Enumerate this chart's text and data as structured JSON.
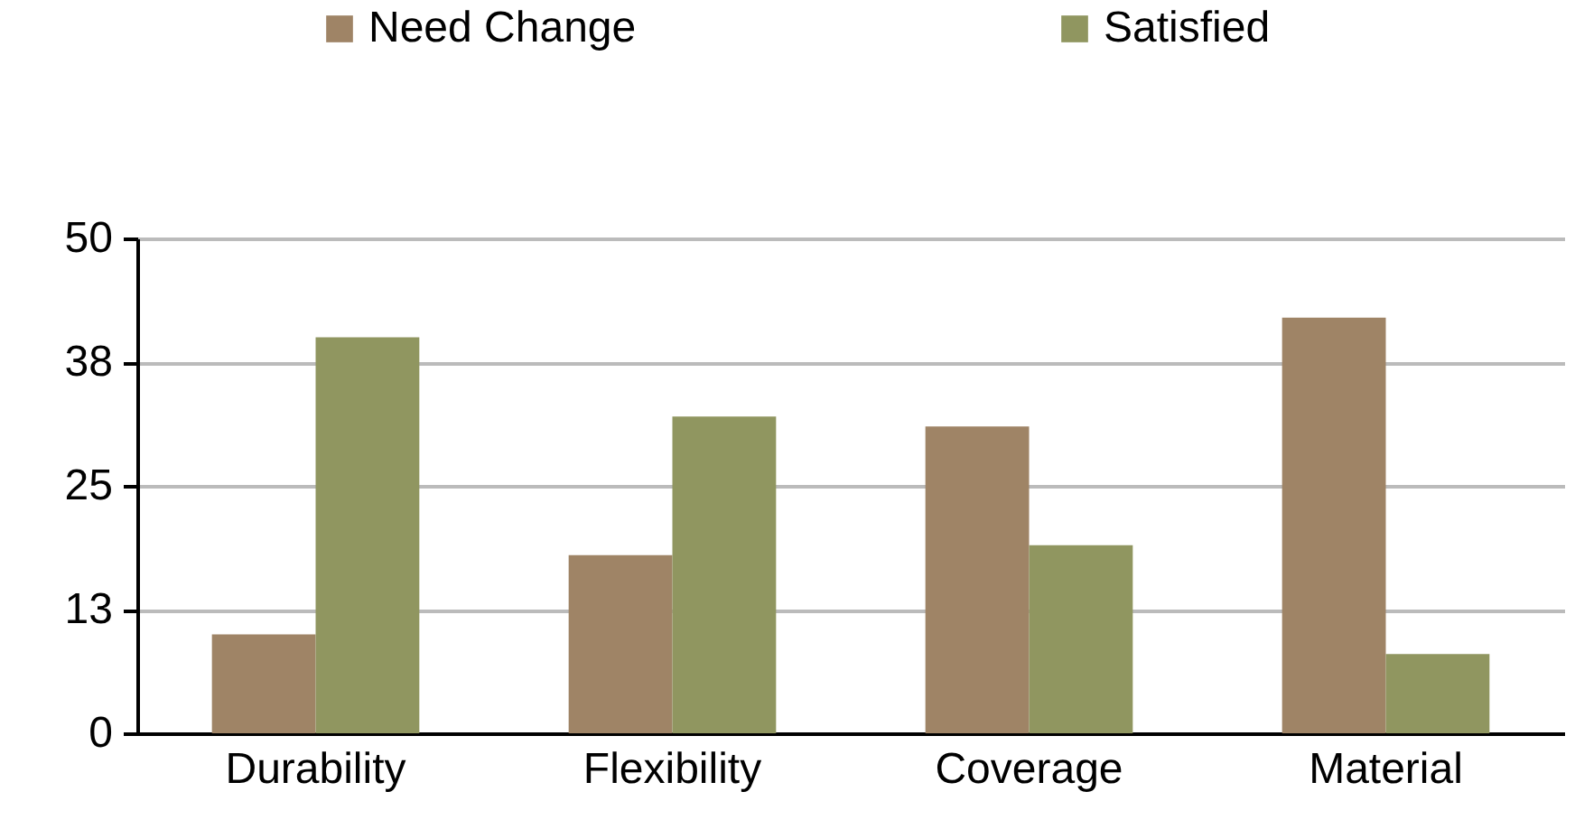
{
  "chart_data": {
    "type": "bar",
    "categories": [
      "Durability",
      "Flexibility",
      "Coverage",
      "Material"
    ],
    "series": [
      {
        "name": "Need Change",
        "color": "#9f8466",
        "values": [
          10,
          18,
          31,
          42
        ]
      },
      {
        "name": "Satisfied",
        "color": "#909660",
        "values": [
          40,
          32,
          19,
          8
        ]
      }
    ],
    "ylim": [
      0,
      50
    ],
    "yticks": [
      0,
      {
        "value": 12.5,
        "label": "13"
      },
      25,
      {
        "value": 37.5,
        "label": "38"
      },
      50
    ],
    "grid": "y",
    "legend": "top"
  }
}
